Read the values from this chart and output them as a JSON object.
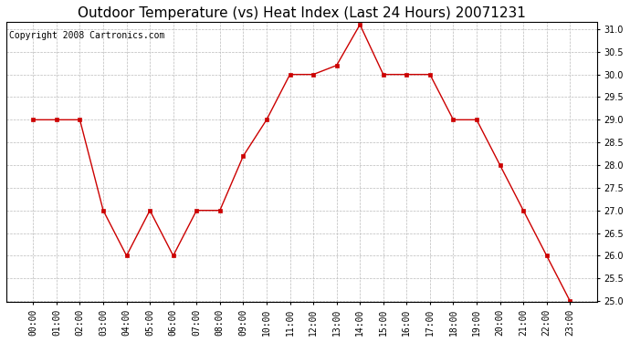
{
  "title": "Outdoor Temperature (vs) Heat Index (Last 24 Hours) 20071231",
  "copyright": "Copyright 2008 Cartronics.com",
  "hours": [
    "00:00",
    "01:00",
    "02:00",
    "03:00",
    "04:00",
    "05:00",
    "06:00",
    "07:00",
    "08:00",
    "09:00",
    "10:00",
    "11:00",
    "12:00",
    "13:00",
    "14:00",
    "15:00",
    "16:00",
    "17:00",
    "18:00",
    "19:00",
    "20:00",
    "21:00",
    "22:00",
    "23:00"
  ],
  "values": [
    29.0,
    29.0,
    29.0,
    27.0,
    26.0,
    27.0,
    26.0,
    27.0,
    27.0,
    28.2,
    29.0,
    30.0,
    30.0,
    30.2,
    31.1,
    30.0,
    30.0,
    30.0,
    29.0,
    29.0,
    28.0,
    27.0,
    26.0,
    25.0
  ],
  "line_color": "#cc0000",
  "marker": "s",
  "marker_color": "#cc0000",
  "marker_size": 3,
  "ylim_min": 25.0,
  "ylim_max": 31.0,
  "ytick_step": 0.5,
  "bg_color": "#ffffff",
  "grid_color": "#bbbbbb",
  "title_fontsize": 11,
  "copyright_fontsize": 7,
  "tick_fontsize": 7
}
